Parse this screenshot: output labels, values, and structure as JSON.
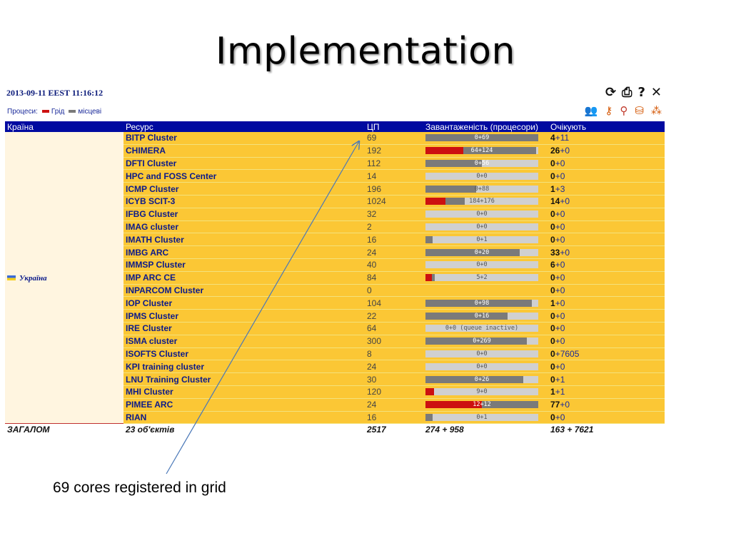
{
  "slide": {
    "title": "Implementation",
    "caption": "69 cores registered in grid"
  },
  "panel": {
    "timestamp": "2013-09-11 EEST 11:16:12",
    "legend": {
      "label": "Процеси:",
      "grid_label": "Грід",
      "local_label": "місцеві",
      "grid_color": "#cc1010",
      "local_color": "#7a7a7a"
    },
    "toolbar_icons": [
      "refresh-icon",
      "print-icon",
      "help-icon",
      "close-icon"
    ],
    "tool_icons": [
      "users-icon",
      "key-icon",
      "search-icon",
      "database-icon",
      "cluster-icon"
    ]
  },
  "table": {
    "headers": {
      "country": "Країна",
      "resource": "Ресурс",
      "cpu": "ЦП",
      "load": "Завантаженість (процесори)",
      "queue": "Очікують"
    },
    "country": "Україна",
    "rows": [
      {
        "name": "BITP Cluster",
        "cpu": "69",
        "grid_frac": 0,
        "local_frac": 1.0,
        "load_text": "0+69",
        "wait_grid": "4",
        "wait_local": "+11"
      },
      {
        "name": "CHIMERA",
        "cpu": "192",
        "grid_frac": 0.333,
        "local_frac": 0.646,
        "load_text": "64+124",
        "wait_grid": "26",
        "wait_local": "+0"
      },
      {
        "name": "DFTI Cluster",
        "cpu": "112",
        "grid_frac": 0,
        "local_frac": 0.5,
        "load_text": "0+56",
        "wait_grid": "0",
        "wait_local": "+0"
      },
      {
        "name": "HPC and FOSS Center",
        "cpu": "14",
        "grid_frac": 0,
        "local_frac": 0,
        "load_text": "0+0",
        "wait_grid": "0",
        "wait_local": "+0"
      },
      {
        "name": "ICMP Cluster",
        "cpu": "196",
        "grid_frac": 0,
        "local_frac": 0.449,
        "load_text": "0+88",
        "wait_grid": "1",
        "wait_local": "+3"
      },
      {
        "name": "ICYB SCIT-3",
        "cpu": "1024",
        "grid_frac": 0.18,
        "local_frac": 0.17,
        "load_text": "184+176",
        "wait_grid": "14",
        "wait_local": "+0"
      },
      {
        "name": "IFBG Cluster",
        "cpu": "32",
        "grid_frac": 0,
        "local_frac": 0,
        "load_text": "0+0",
        "wait_grid": "0",
        "wait_local": "+0"
      },
      {
        "name": "IMAG cluster",
        "cpu": "2",
        "grid_frac": 0,
        "local_frac": 0,
        "load_text": "0+0",
        "wait_grid": "0",
        "wait_local": "+0"
      },
      {
        "name": "IMATH Cluster",
        "cpu": "16",
        "grid_frac": 0,
        "local_frac": 0.0625,
        "load_text": "0+1",
        "wait_grid": "0",
        "wait_local": "+0"
      },
      {
        "name": "IMBG ARC",
        "cpu": "24",
        "grid_frac": 0,
        "local_frac": 0.833,
        "load_text": "0+20",
        "wait_grid": "33",
        "wait_local": "+0"
      },
      {
        "name": "IMMSP Cluster",
        "cpu": "40",
        "grid_frac": 0,
        "local_frac": 0,
        "load_text": "0+0",
        "wait_grid": "6",
        "wait_local": "+0"
      },
      {
        "name": "IMP ARC CE",
        "cpu": "84",
        "grid_frac": 0.06,
        "local_frac": 0.024,
        "load_text": "5+2",
        "wait_grid": "0",
        "wait_local": "+0"
      },
      {
        "name": "INPARCOM Cluster",
        "cpu": "0",
        "grid_frac": 0,
        "local_frac": 0,
        "load_text": "",
        "wait_grid": "0",
        "wait_local": "+0",
        "no_bar": true
      },
      {
        "name": "IOP Cluster",
        "cpu": "104",
        "grid_frac": 0,
        "local_frac": 0.942,
        "load_text": "0+98",
        "wait_grid": "1",
        "wait_local": "+0"
      },
      {
        "name": "IPMS Cluster",
        "cpu": "22",
        "grid_frac": 0,
        "local_frac": 0.727,
        "load_text": "0+16",
        "wait_grid": "0",
        "wait_local": "+0"
      },
      {
        "name": "IRE Cluster",
        "cpu": "64",
        "grid_frac": 0,
        "local_frac": 0,
        "load_text": "0+0 (queue inactive)",
        "wait_grid": "0",
        "wait_local": "+0"
      },
      {
        "name": "ISMA cluster",
        "cpu": "300",
        "grid_frac": 0,
        "local_frac": 0.897,
        "load_text": "0+269",
        "wait_grid": "0",
        "wait_local": "+0"
      },
      {
        "name": "ISOFTS Cluster",
        "cpu": "8",
        "grid_frac": 0,
        "local_frac": 0,
        "load_text": "0+0",
        "wait_grid": "0",
        "wait_local": "+7605"
      },
      {
        "name": "KPI training cluster",
        "cpu": "24",
        "grid_frac": 0,
        "local_frac": 0,
        "load_text": "0+0",
        "wait_grid": "0",
        "wait_local": "+0"
      },
      {
        "name": "LNU Training Cluster",
        "cpu": "30",
        "grid_frac": 0,
        "local_frac": 0.867,
        "load_text": "0+26",
        "wait_grid": "0",
        "wait_local": "+1"
      },
      {
        "name": "MHI Cluster",
        "cpu": "120",
        "grid_frac": 0.075,
        "local_frac": 0,
        "load_text": "9+0",
        "wait_grid": "1",
        "wait_local": "+1"
      },
      {
        "name": "PIMEE ARC",
        "cpu": "24",
        "grid_frac": 0.5,
        "local_frac": 0.5,
        "load_text": "12+12",
        "wait_grid": "77",
        "wait_local": "+0"
      },
      {
        "name": "RIAN",
        "cpu": "16",
        "grid_frac": 0,
        "local_frac": 0.0625,
        "load_text": "0+1",
        "wait_grid": "0",
        "wait_local": "+0"
      }
    ],
    "total": {
      "label": "ЗАГАЛОМ",
      "objects": "23 об'єктів",
      "cpu": "2517",
      "load": "274 + 958",
      "queue": "163 + 7621"
    }
  }
}
